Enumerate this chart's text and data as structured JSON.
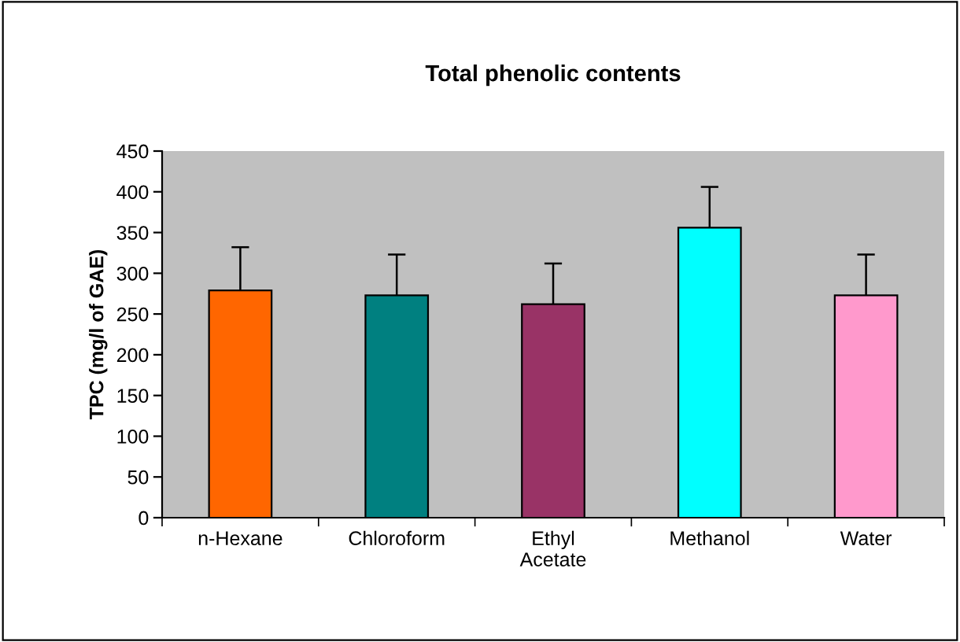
{
  "chart_data": {
    "type": "bar",
    "title": "Total phenolic contents",
    "ylabel": "TPC (mg/l of GAE)",
    "categories": [
      "n-Hexane",
      "Chloroform",
      "Ethyl\nAcetate",
      "Methanol",
      "Water"
    ],
    "values": [
      279,
      273,
      262,
      356,
      273
    ],
    "errors": [
      53,
      50,
      50,
      50,
      50
    ],
    "colors": [
      "#ff6600",
      "#008080",
      "#993366",
      "#00ffff",
      "#ff99cc"
    ],
    "ylim": [
      0,
      450
    ],
    "yticks": [
      0,
      50,
      100,
      150,
      200,
      250,
      300,
      350,
      400,
      450
    ],
    "grid": false,
    "legend": false
  }
}
